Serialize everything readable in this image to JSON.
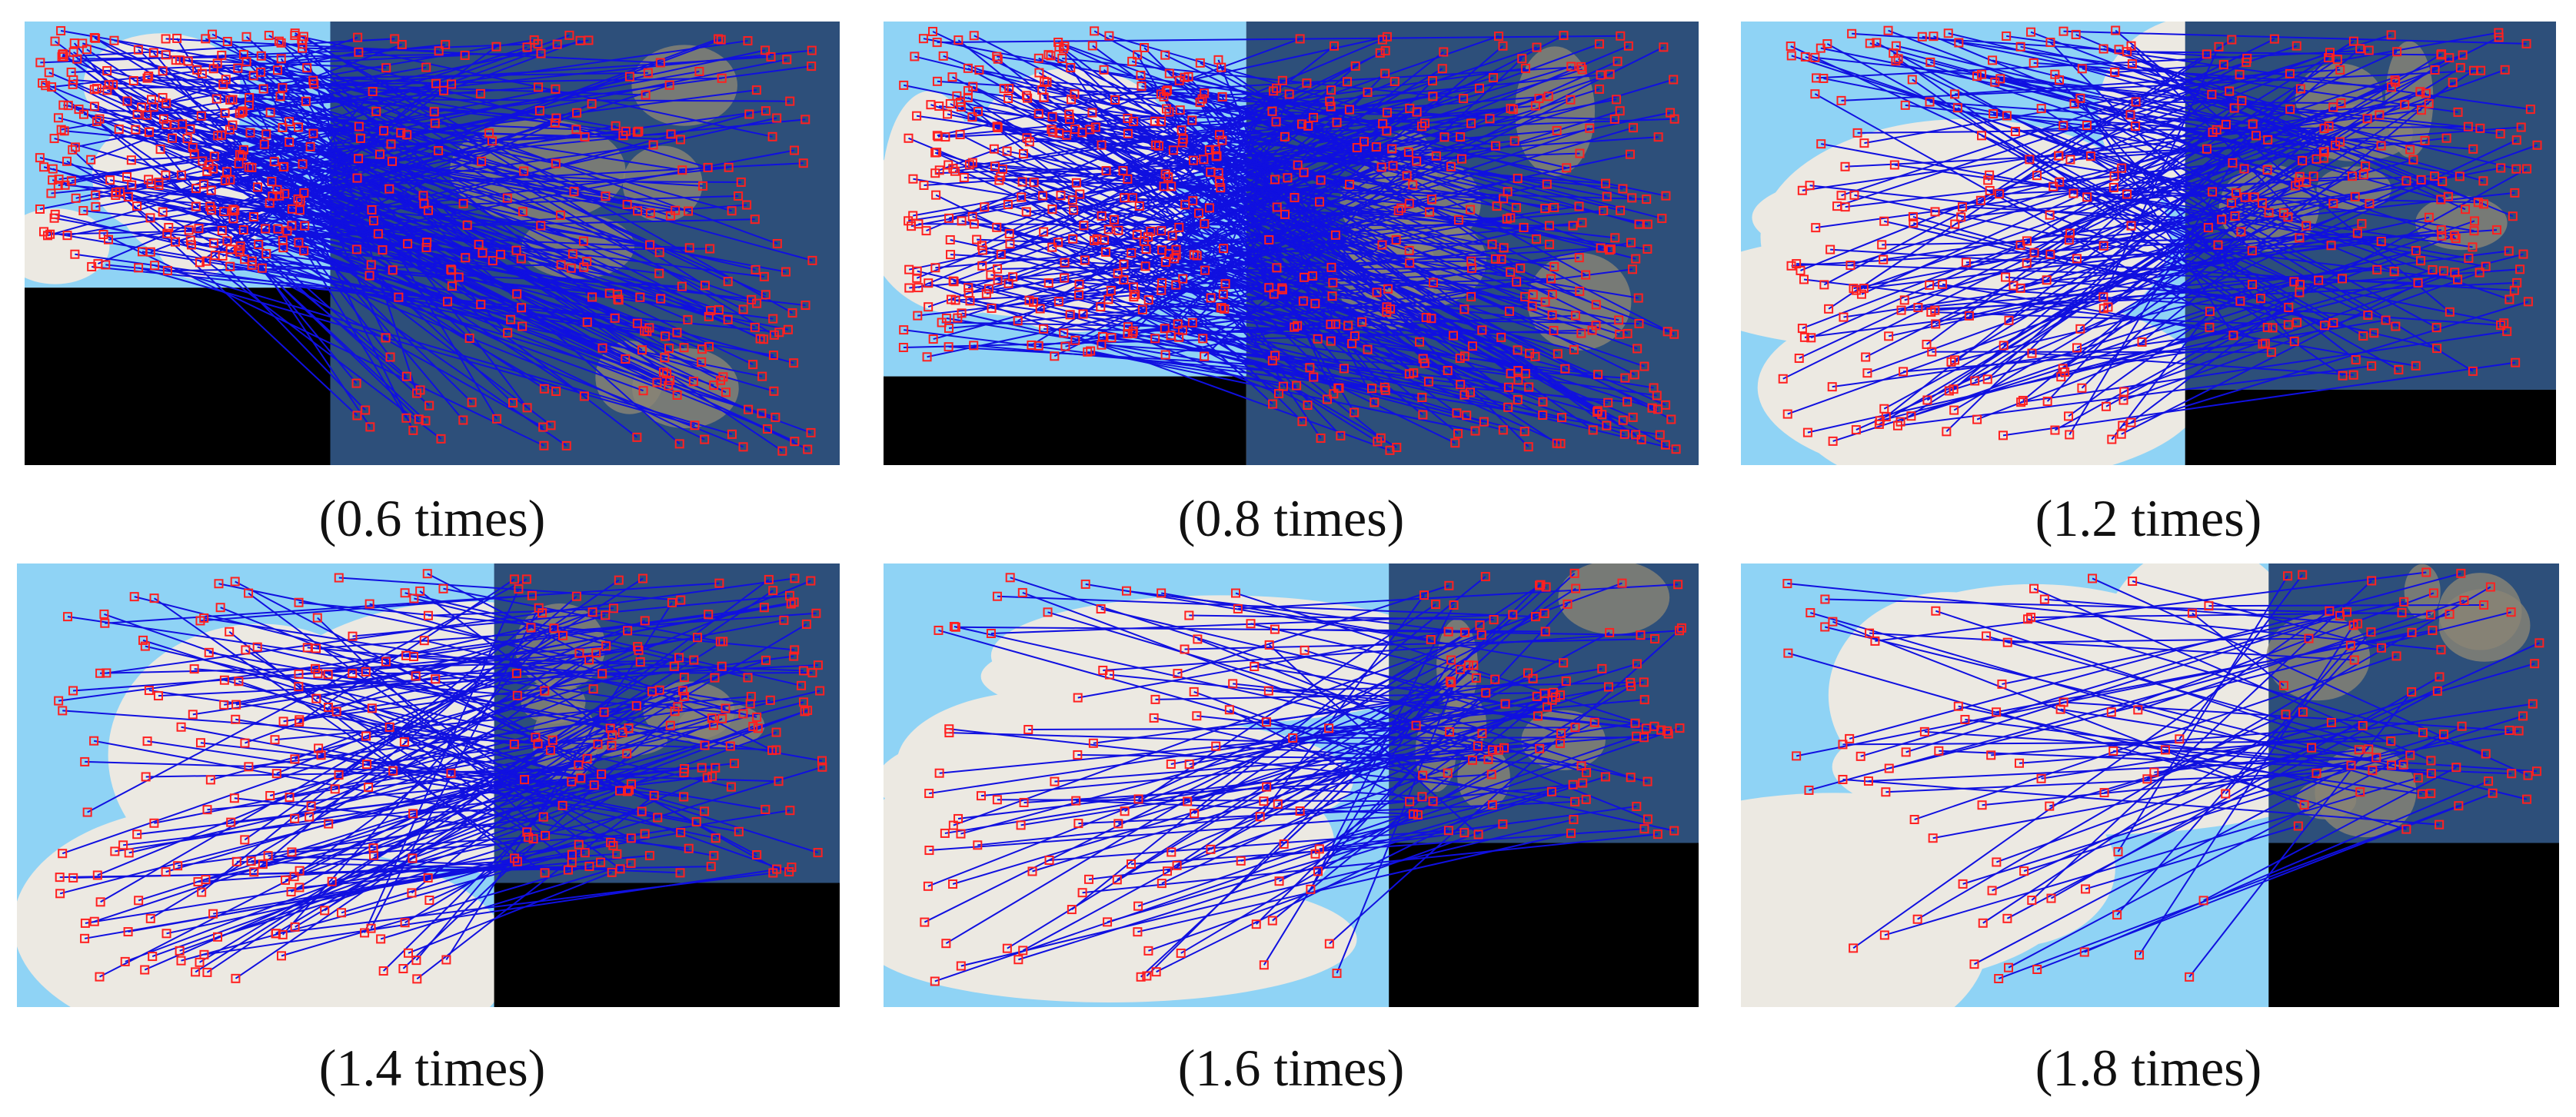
{
  "captions": [
    "(0.6 times)",
    "(0.8 times)",
    "(1.2 times)",
    "(1.4 times)",
    "(1.6 times)",
    "(1.8 times)"
  ]
}
